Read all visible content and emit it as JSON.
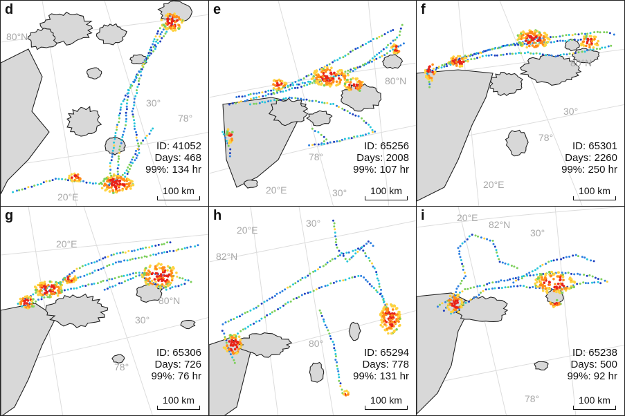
{
  "colors": {
    "land": "#d8d8d8",
    "coast": "#222222",
    "grid": "#dcdcdc",
    "label": "#a8a8a8",
    "track_palette": [
      "#1f3fbf",
      "#2d7fe0",
      "#26c6da",
      "#7ccf5a",
      "#ffd23f",
      "#ff8c1a",
      "#e8231a"
    ]
  },
  "panels": [
    {
      "label": "d",
      "id_text": "ID: 41052",
      "days_text": "Days: 468",
      "pct_text": "99%: 134 hr",
      "scale_text": "100 km",
      "grid_labels": [
        {
          "key": "lat",
          "text": "80°N"
        },
        {
          "key": "lon",
          "text": "30°"
        },
        {
          "key": "lat2",
          "text": "78°"
        },
        {
          "key": "lon2",
          "text": "20°E"
        }
      ],
      "track_icon": "gps-track-dots"
    },
    {
      "label": "e",
      "id_text": "ID: 65256",
      "days_text": "Days: 2008",
      "pct_text": "99%: 107 hr",
      "scale_text": "100 km",
      "grid_labels": [
        {
          "key": "lat",
          "text": "80°N"
        },
        {
          "key": "lon",
          "text": "30°"
        },
        {
          "key": "lat2",
          "text": "78°"
        },
        {
          "key": "lon2",
          "text": "20°E"
        }
      ],
      "track_icon": "gps-track-dots"
    },
    {
      "label": "f",
      "id_text": "ID: 65301",
      "days_text": "Days: 2260",
      "pct_text": "99%: 250 hr",
      "scale_text": "100 km",
      "grid_labels": [
        {
          "key": "lat",
          "text": "80°N"
        },
        {
          "key": "lon",
          "text": "30°"
        },
        {
          "key": "lat2",
          "text": "78°"
        },
        {
          "key": "lon2",
          "text": "20°E"
        }
      ],
      "track_icon": "gps-track-dots"
    },
    {
      "label": "g",
      "id_text": "ID: 65306",
      "days_text": "Days: 726",
      "pct_text": "99%: 76 hr",
      "scale_text": "100 km",
      "grid_labels": [
        {
          "key": "lon2",
          "text": "20°E"
        },
        {
          "key": "lat",
          "text": "80°N"
        },
        {
          "key": "lon",
          "text": "30°"
        },
        {
          "key": "lat2",
          "text": "78°"
        }
      ],
      "track_icon": "gps-track-dots"
    },
    {
      "label": "h",
      "id_text": "ID: 65294",
      "days_text": "Days: 778",
      "pct_text": "99%: 131 hr",
      "scale_text": "100 km",
      "grid_labels": [
        {
          "key": "lon2",
          "text": "20°E"
        },
        {
          "key": "lon",
          "text": "30°"
        },
        {
          "key": "lat",
          "text": "82°N"
        },
        {
          "key": "lat2",
          "text": "80°"
        }
      ],
      "track_icon": "gps-track-dots"
    },
    {
      "label": "i",
      "id_text": "ID: 65238",
      "days_text": "Days:  500",
      "pct_text": "99%: 92 hr",
      "scale_text": "100 km",
      "grid_labels": [
        {
          "key": "lon2",
          "text": "20°E"
        },
        {
          "key": "lat",
          "text": "82°N"
        },
        {
          "key": "lon",
          "text": "30°"
        },
        {
          "key": "lat2",
          "text": "78°"
        }
      ],
      "track_icon": "gps-track-dots"
    }
  ]
}
